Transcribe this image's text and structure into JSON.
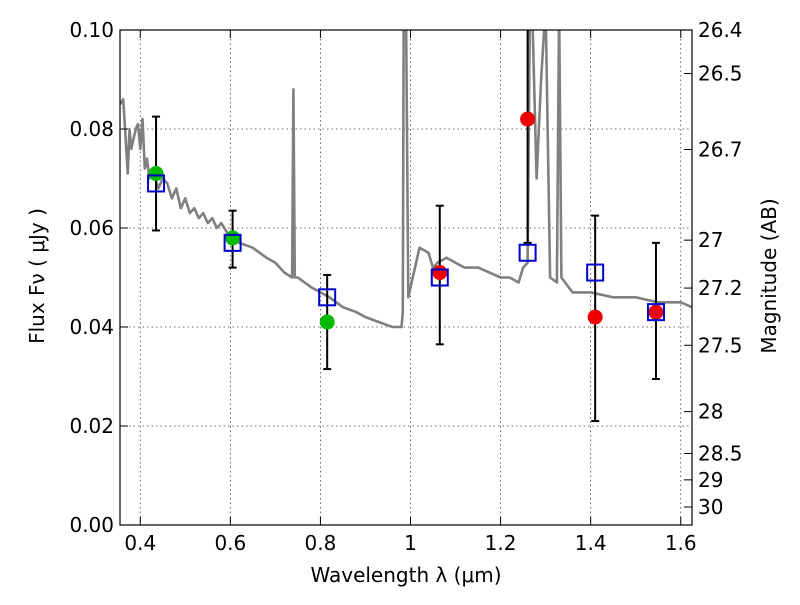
{
  "chart_data": {
    "type": "scatter",
    "xlabel": "Wavelength  λ (μm)",
    "ylabel": "Flux  Fν  ( μJy )",
    "y2label": "Magnitude (AB)",
    "xlim": [
      0.355,
      1.625
    ],
    "ylim": [
      0.0,
      0.1
    ],
    "grid": true,
    "x_ticks": [
      {
        "value": 0.4,
        "label": "0.4"
      },
      {
        "value": 0.6,
        "label": "0.6"
      },
      {
        "value": 0.8,
        "label": "0.8"
      },
      {
        "value": 1.0,
        "label": "1"
      },
      {
        "value": 1.2,
        "label": "1.2"
      },
      {
        "value": 1.4,
        "label": "1.4"
      },
      {
        "value": 1.6,
        "label": "1.6"
      }
    ],
    "y_ticks": [
      {
        "value": 0.0,
        "label": "0.00"
      },
      {
        "value": 0.02,
        "label": "0.02"
      },
      {
        "value": 0.04,
        "label": "0.04"
      },
      {
        "value": 0.06,
        "label": "0.06"
      },
      {
        "value": 0.08,
        "label": "0.08"
      },
      {
        "value": 0.1,
        "label": "0.10"
      }
    ],
    "y2_ticks": [
      {
        "value": 26.4,
        "label": "26.4"
      },
      {
        "value": 26.5,
        "label": "26.5"
      },
      {
        "value": 26.7,
        "label": "26.7"
      },
      {
        "value": 27.0,
        "label": "27"
      },
      {
        "value": 27.2,
        "label": "27.2"
      },
      {
        "value": 27.5,
        "label": "27.5"
      },
      {
        "value": 28.0,
        "label": "28"
      },
      {
        "value": 28.5,
        "label": "28.5"
      },
      {
        "value": 29.0,
        "label": "29"
      },
      {
        "value": 30.0,
        "label": "30"
      }
    ],
    "series": [
      {
        "kind": "line",
        "color": "#808080",
        "x": [
          0.355,
          0.362,
          0.367,
          0.372,
          0.376,
          0.38,
          0.385,
          0.39,
          0.395,
          0.4,
          0.405,
          0.41,
          0.415,
          0.42,
          0.43,
          0.44,
          0.45,
          0.46,
          0.47,
          0.48,
          0.49,
          0.5,
          0.51,
          0.52,
          0.53,
          0.54,
          0.55,
          0.56,
          0.57,
          0.58,
          0.6,
          0.62,
          0.65,
          0.68,
          0.7,
          0.72,
          0.737,
          0.74,
          0.743,
          0.75,
          0.78,
          0.8,
          0.82,
          0.85,
          0.88,
          0.9,
          0.93,
          0.96,
          0.98,
          0.983,
          0.985,
          0.99,
          0.995,
          1.0,
          1.02,
          1.04,
          1.05,
          1.06,
          1.08,
          1.1,
          1.12,
          1.15,
          1.2,
          1.22,
          1.24,
          1.25,
          1.26,
          1.265,
          1.27,
          1.28,
          1.29,
          1.3,
          1.31,
          1.325,
          1.33,
          1.335,
          1.36,
          1.4,
          1.45,
          1.5,
          1.55,
          1.6,
          1.625
        ],
        "y": [
          0.085,
          0.086,
          0.079,
          0.071,
          0.08,
          0.076,
          0.078,
          0.08,
          0.081,
          0.076,
          0.082,
          0.072,
          0.074,
          0.07,
          0.071,
          0.068,
          0.07,
          0.069,
          0.066,
          0.068,
          0.064,
          0.066,
          0.063,
          0.064,
          0.062,
          0.063,
          0.061,
          0.062,
          0.06,
          0.061,
          0.058,
          0.057,
          0.056,
          0.054,
          0.053,
          0.051,
          0.05,
          0.088,
          0.05,
          0.05,
          0.048,
          0.047,
          0.046,
          0.044,
          0.043,
          0.042,
          0.041,
          0.04,
          0.04,
          0.043,
          0.105,
          0.105,
          0.046,
          0.048,
          0.056,
          0.055,
          0.052,
          0.053,
          0.054,
          0.053,
          0.052,
          0.052,
          0.05,
          0.05,
          0.049,
          0.052,
          0.053,
          0.105,
          0.105,
          0.07,
          0.09,
          0.105,
          0.05,
          0.049,
          0.105,
          0.05,
          0.047,
          0.047,
          0.046,
          0.046,
          0.045,
          0.045,
          0.044
        ]
      },
      {
        "kind": "open-square",
        "color": "#0000cc",
        "x": [
          0.435,
          0.605,
          0.815,
          1.065,
          1.26,
          1.41,
          1.545
        ],
        "y": [
          0.069,
          0.057,
          0.046,
          0.05,
          0.055,
          0.051,
          0.043
        ]
      },
      {
        "kind": "filled-circle",
        "color": "#00bb00",
        "x": [
          0.435,
          0.605,
          0.815
        ],
        "y": [
          0.071,
          0.058,
          0.041
        ]
      },
      {
        "kind": "filled-circle",
        "color": "#ee0000",
        "x": [
          1.065,
          1.26,
          1.41,
          1.545
        ],
        "y": [
          0.051,
          0.082,
          0.042,
          0.043
        ]
      },
      {
        "kind": "error-bars",
        "color": "#000000",
        "x": [
          0.435,
          0.605,
          0.815,
          1.065,
          1.26,
          1.41,
          1.545
        ],
        "y_low": [
          0.0595,
          0.052,
          0.0315,
          0.0365,
          0.057,
          0.021,
          0.0295
        ],
        "y_high": [
          0.0825,
          0.0635,
          0.0505,
          0.0645,
          0.105,
          0.0625,
          0.057
        ]
      }
    ]
  }
}
